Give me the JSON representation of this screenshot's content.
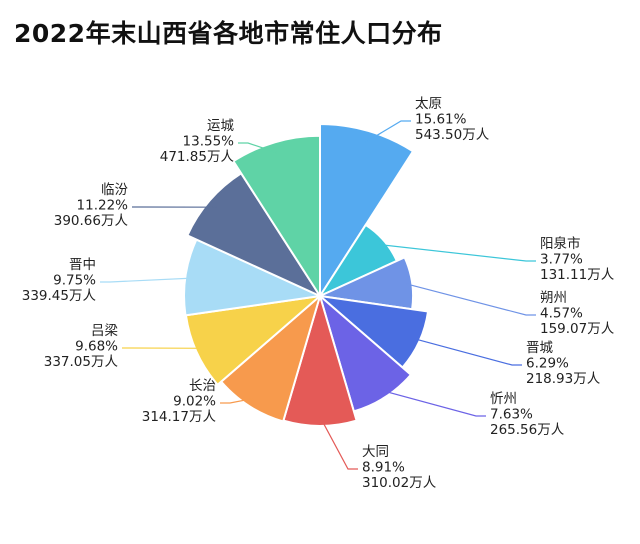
{
  "chart_data": {
    "type": "pie",
    "variant": "rose",
    "title": "2022年末山西省各地市常住人口分布",
    "unit": "万人",
    "slices": [
      {
        "name": "太原",
        "percent": "15.61%",
        "value": 543.5,
        "value_label": "543.50万人",
        "color": "#55aaf0"
      },
      {
        "name": "阳泉市",
        "percent": "3.77%",
        "value": 131.11,
        "value_label": "131.11万人",
        "color": "#3cc6d9"
      },
      {
        "name": "朔州",
        "percent": "4.57%",
        "value": 159.07,
        "value_label": "159.07万人",
        "color": "#6f93e6"
      },
      {
        "name": "晋城",
        "percent": "6.29%",
        "value": 218.93,
        "value_label": "218.93万人",
        "color": "#4a6ee0"
      },
      {
        "name": "忻州",
        "percent": "7.63%",
        "value": 265.56,
        "value_label": "265.56万人",
        "color": "#6c63e6"
      },
      {
        "name": "大同",
        "percent": "8.91%",
        "value": 310.02,
        "value_label": "310.02万人",
        "color": "#e45a57"
      },
      {
        "name": "长治",
        "percent": "9.02%",
        "value": 314.17,
        "value_label": "314.17万人",
        "color": "#f79a4d"
      },
      {
        "name": "吕梁",
        "percent": "9.68%",
        "value": 337.05,
        "value_label": "337.05万人",
        "color": "#f7d24a"
      },
      {
        "name": "晋中",
        "percent": "9.75%",
        "value": 339.45,
        "value_label": "339.45万人",
        "color": "#a8dcf6"
      },
      {
        "name": "临汾",
        "percent": "11.22%",
        "value": 390.66,
        "value_label": "390.66万人",
        "color": "#5b6f99"
      },
      {
        "name": "运城",
        "percent": "13.55%",
        "value": 471.85,
        "value_label": "471.85万人",
        "color": "#5fd3a6"
      }
    ]
  }
}
